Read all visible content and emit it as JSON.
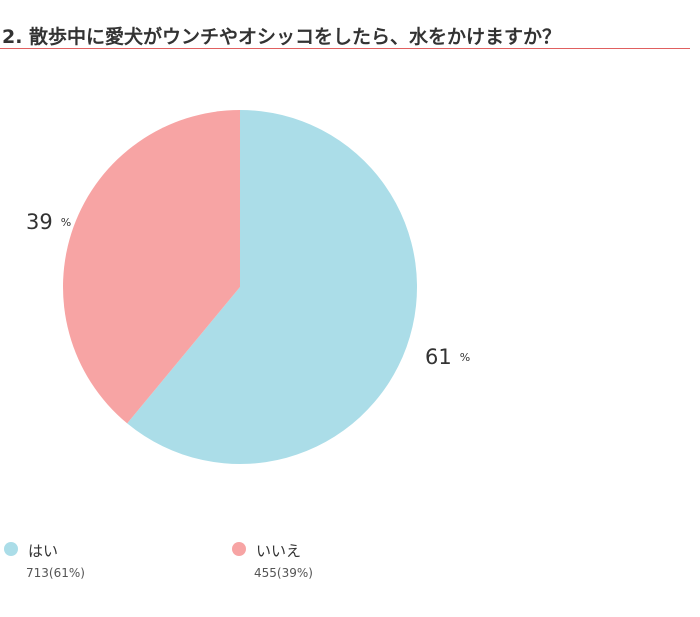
{
  "title": "2. 散歩中に愛犬がウンチやオシッコをしたら、水をかけますか？",
  "colors": {
    "yes": "#abdde8",
    "no": "#f7a4a4",
    "title_rule": "#e06060",
    "text": "#333333"
  },
  "chart_data": {
    "type": "pie",
    "title": "2. 散歩中に愛犬がウンチやオシッコをしたら、水をかけますか？",
    "slices": [
      {
        "label": "はい",
        "value": 61,
        "count": 713,
        "unit": "%",
        "color": "#abdde8",
        "count_text": "713(61%)"
      },
      {
        "label": "いいえ",
        "value": 39,
        "count": 455,
        "unit": "%",
        "color": "#f7a4a4",
        "count_text": "455(39%)"
      }
    ],
    "legend_position": "bottom-left"
  },
  "legend": [
    {
      "label": "はい",
      "count": "713(61%)",
      "color": "#abdde8"
    },
    {
      "label": "いいえ",
      "count": "455(39%)",
      "color": "#f7a4a4"
    }
  ]
}
